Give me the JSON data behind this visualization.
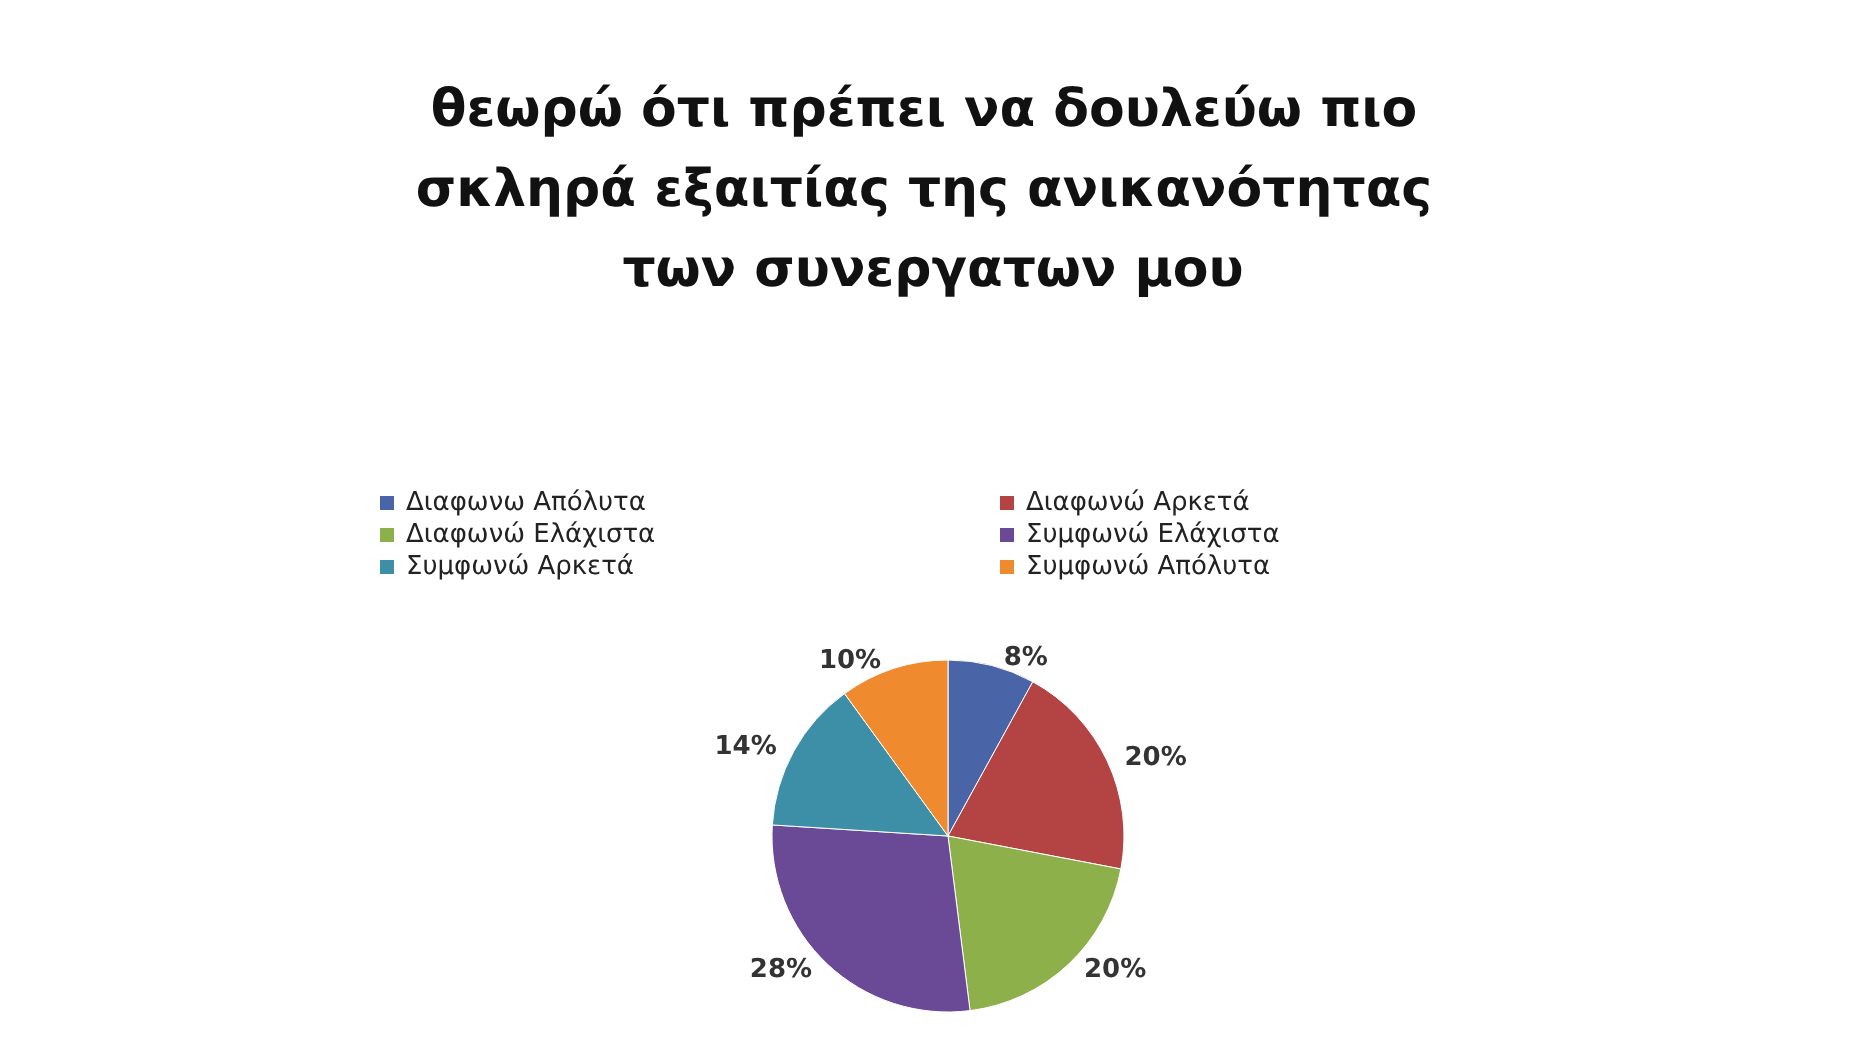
{
  "chart_data": {
    "type": "pie",
    "title": "θεωρώ ότι πρέπει να δουλεύω πιο σκληρά εξαιτίας της ανικανότητας των συνεργατων μου",
    "categories": [
      "Διαφωνω Απόλυτα",
      "Διαφωνώ Αρκετά",
      "Διαφωνώ Ελάχιστα",
      "Συμφωνώ Ελάχιστα",
      "Συμφωνώ Αρκετά",
      "Συμφωνώ Απόλυτα"
    ],
    "values": [
      8,
      20,
      20,
      28,
      14,
      10
    ],
    "colors": [
      "#4a64a8",
      "#b44444",
      "#8db04a",
      "#6a4a96",
      "#3d8fa8",
      "#f08a2e"
    ],
    "value_labels": [
      "8%",
      "20%",
      "20%",
      "28%",
      "14%",
      "10%"
    ],
    "legend": "top"
  }
}
